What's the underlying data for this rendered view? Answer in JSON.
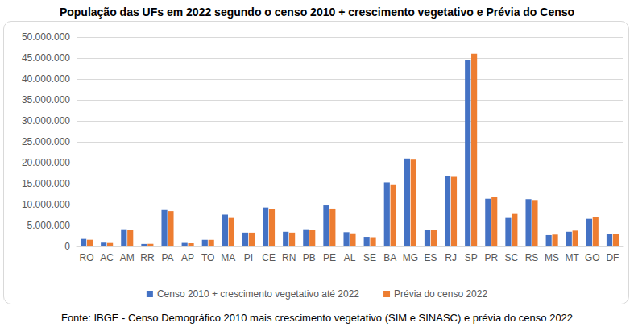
{
  "chart_data": {
    "type": "bar",
    "title": "População das UFs em 2022 segundo o censo 2010 + crescimento vegetativo e Prévia do Censo",
    "source": "Fonte: IBGE - Censo Demográfico 2010 mais crescimento vegetativo (SIM e SINASC) e prévia do censo 2022",
    "categories": [
      "RO",
      "AC",
      "AM",
      "RR",
      "PA",
      "AP",
      "TO",
      "MA",
      "PI",
      "CE",
      "RN",
      "PB",
      "PE",
      "AL",
      "SE",
      "BA",
      "MG",
      "ES",
      "RJ",
      "SP",
      "PR",
      "SC",
      "RS",
      "MS",
      "MT",
      "GO",
      "DF"
    ],
    "series": [
      {
        "name": "Censo 2010 + crescimento vegetativo até 2022",
        "color": "#4472c4",
        "values": [
          1800000,
          900000,
          4100000,
          600000,
          8700000,
          850000,
          1600000,
          7600000,
          3300000,
          9300000,
          3500000,
          4100000,
          9800000,
          3400000,
          2300000,
          15300000,
          21000000,
          3900000,
          16900000,
          44600000,
          11400000,
          6800000,
          11300000,
          2700000,
          3500000,
          6600000,
          2900000
        ]
      },
      {
        "name": "Prévia do censo 2022",
        "color": "#ed7d31",
        "values": [
          1600000,
          830000,
          3950000,
          630000,
          8440000,
          770000,
          1580000,
          6800000,
          3290000,
          8940000,
          3300000,
          4030000,
          9050000,
          3130000,
          2210000,
          14660000,
          20730000,
          3980000,
          16620000,
          46020000,
          11840000,
          7760000,
          11090000,
          2830000,
          3780000,
          6950000,
          2920000
        ]
      }
    ],
    "ylim": [
      0,
      50000000
    ],
    "yticks": [
      {
        "value": 0,
        "label": "0"
      },
      {
        "value": 5000000,
        "label": "5.000.000"
      },
      {
        "value": 10000000,
        "label": "10.000.000"
      },
      {
        "value": 15000000,
        "label": "15.000.000"
      },
      {
        "value": 20000000,
        "label": "20.000.000"
      },
      {
        "value": 25000000,
        "label": "25.000.000"
      },
      {
        "value": 30000000,
        "label": "30.000.000"
      },
      {
        "value": 35000000,
        "label": "35.000.000"
      },
      {
        "value": 40000000,
        "label": "40.000.000"
      },
      {
        "value": 45000000,
        "label": "45.000.000"
      },
      {
        "value": 50000000,
        "label": "50.000.000"
      }
    ],
    "grid": true,
    "legend": "bottom"
  }
}
